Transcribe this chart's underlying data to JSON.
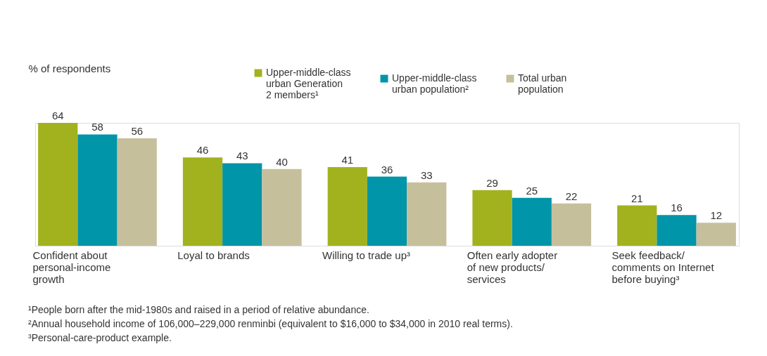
{
  "chart_data": {
    "type": "bar",
    "ylabel": "% of respondents",
    "categories": [
      "Confident about personal-income growth",
      "Loyal to brands",
      "Willing to trade up³",
      "Often early adopter of new products/ services",
      "Seek feedback/ comments on Internet before buying³"
    ],
    "series": [
      {
        "name": "Upper-middle-class urban Generation 2 members¹",
        "color": "#a2b21e",
        "values": [
          64,
          46,
          41,
          29,
          21
        ]
      },
      {
        "name": "Upper-middle-class urban population²",
        "color": "#0095a8",
        "values": [
          58,
          43,
          36,
          25,
          16
        ]
      },
      {
        "name": "Total urban population",
        "color": "#c6bf9c",
        "values": [
          56,
          40,
          33,
          22,
          12
        ]
      }
    ],
    "data_labels": true,
    "grid": false,
    "legend": "top",
    "annotations": [
      "¹People born after the mid-1980s and raised in a period of relative abundance.",
      "²Annual household income of 106,000–229,000 renminbi (equivalent to $16,000 to $34,000 in 2010 real terms).",
      "³Personal-care-product example."
    ]
  }
}
